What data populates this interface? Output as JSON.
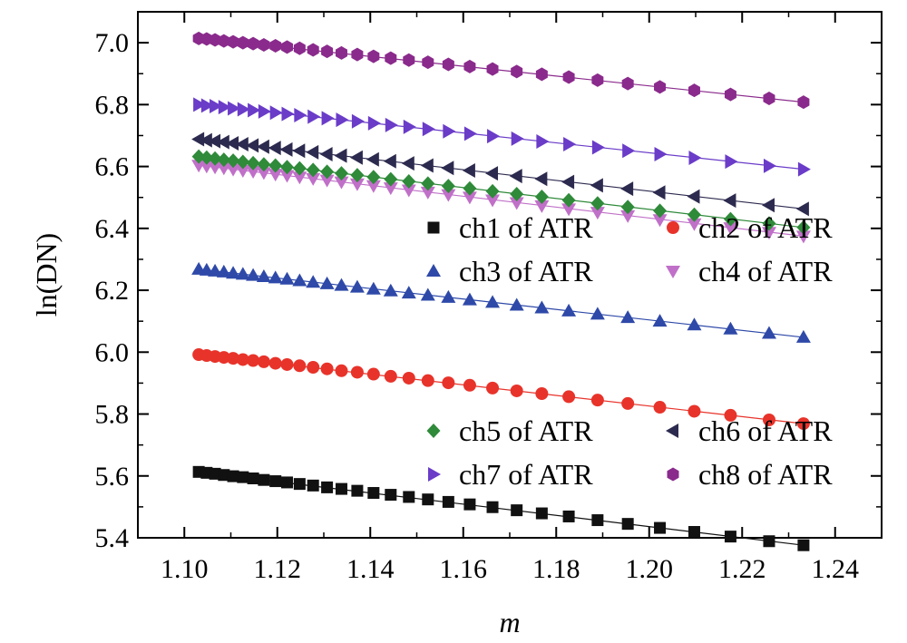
{
  "chart_data": {
    "type": "scatter",
    "title": "",
    "xlabel": "m",
    "ylabel": "ln(DN)",
    "xlim": [
      1.09,
      1.25
    ],
    "ylim": [
      5.4,
      7.1
    ],
    "xticks": [
      1.1,
      1.12,
      1.14,
      1.16,
      1.18,
      1.2,
      1.22,
      1.24
    ],
    "xtick_labels": [
      "1.10",
      "1.12",
      "1.14",
      "1.16",
      "1.18",
      "1.20",
      "1.22",
      "1.24"
    ],
    "yticks": [
      5.4,
      5.6,
      5.8,
      6.0,
      6.2,
      6.4,
      6.6,
      6.8,
      7.0
    ],
    "ytick_labels": [
      "5.4",
      "5.6",
      "5.8",
      "6.0",
      "6.2",
      "6.4",
      "6.6",
      "6.8",
      "7.0"
    ],
    "x": [
      1.1031,
      1.1048,
      1.1066,
      1.1085,
      1.1105,
      1.1126,
      1.1148,
      1.1171,
      1.1196,
      1.1221,
      1.1248,
      1.1277,
      1.1307,
      1.1338,
      1.1372,
      1.1407,
      1.1444,
      1.1483,
      1.1524,
      1.1568,
      1.1614,
      1.1663,
      1.1715,
      1.1769,
      1.1827,
      1.1889,
      1.1954,
      1.2023,
      1.2097,
      1.2175,
      1.2258,
      1.2332
    ],
    "series": [
      {
        "name": "ch1 of ATR",
        "marker": "square",
        "color": "#111111",
        "values": [
          5.613,
          5.61,
          5.607,
          5.603,
          5.599,
          5.596,
          5.592,
          5.587,
          5.583,
          5.579,
          5.574,
          5.569,
          5.563,
          5.558,
          5.552,
          5.545,
          5.539,
          5.532,
          5.524,
          5.516,
          5.508,
          5.499,
          5.489,
          5.479,
          5.469,
          5.457,
          5.445,
          5.432,
          5.419,
          5.404,
          5.389,
          5.376
        ],
        "fit": [
          5.612,
          5.376
        ]
      },
      {
        "name": "ch2 of ATR",
        "marker": "circle",
        "color": "#e8332a",
        "values": [
          5.992,
          5.989,
          5.986,
          5.983,
          5.98,
          5.976,
          5.973,
          5.969,
          5.964,
          5.96,
          5.956,
          5.951,
          5.946,
          5.94,
          5.935,
          5.929,
          5.922,
          5.916,
          5.908,
          5.901,
          5.893,
          5.884,
          5.875,
          5.866,
          5.856,
          5.845,
          5.834,
          5.822,
          5.809,
          5.796,
          5.781,
          5.769
        ],
        "fit": [
          5.992,
          5.769
        ]
      },
      {
        "name": "ch3 of ATR",
        "marker": "triangle-up",
        "color": "#2e49a8",
        "values": [
          6.268,
          6.265,
          6.262,
          6.259,
          6.255,
          6.252,
          6.248,
          6.244,
          6.24,
          6.236,
          6.231,
          6.226,
          6.221,
          6.216,
          6.21,
          6.204,
          6.198,
          6.191,
          6.184,
          6.177,
          6.169,
          6.161,
          6.152,
          6.143,
          6.133,
          6.123,
          6.112,
          6.1,
          6.088,
          6.075,
          6.061,
          6.048
        ],
        "fit": [
          6.268,
          6.048
        ]
      },
      {
        "name": "ch4 of ATR",
        "marker": "triangle-down",
        "color": "#c070c8",
        "values": [
          6.604,
          6.601,
          6.598,
          6.595,
          6.591,
          6.587,
          6.584,
          6.58,
          6.575,
          6.571,
          6.566,
          6.561,
          6.556,
          6.55,
          6.544,
          6.538,
          6.531,
          6.524,
          6.517,
          6.509,
          6.501,
          6.492,
          6.483,
          6.473,
          6.463,
          6.452,
          6.441,
          6.428,
          6.415,
          6.402,
          6.387,
          6.375
        ],
        "fit": [
          6.604,
          6.375
        ]
      },
      {
        "name": "ch5 of ATR",
        "marker": "diamond",
        "color": "#2f8a3a",
        "values": [
          6.632,
          6.629,
          6.626,
          6.622,
          6.619,
          6.615,
          6.611,
          6.607,
          6.603,
          6.598,
          6.594,
          6.589,
          6.583,
          6.578,
          6.572,
          6.566,
          6.559,
          6.552,
          6.545,
          6.537,
          6.529,
          6.52,
          6.511,
          6.502,
          6.491,
          6.481,
          6.469,
          6.457,
          6.444,
          6.43,
          6.416,
          6.403
        ],
        "fit": [
          6.632,
          6.403
        ]
      },
      {
        "name": "ch6 of ATR",
        "marker": "triangle-left",
        "color": "#2c2a4e",
        "values": [
          6.688,
          6.685,
          6.682,
          6.679,
          6.675,
          6.672,
          6.668,
          6.664,
          6.66,
          6.655,
          6.651,
          6.646,
          6.64,
          6.635,
          6.629,
          6.623,
          6.617,
          6.61,
          6.603,
          6.595,
          6.587,
          6.578,
          6.569,
          6.56,
          6.55,
          6.539,
          6.528,
          6.516,
          6.503,
          6.49,
          6.475,
          6.463
        ],
        "fit": [
          6.688,
          6.463
        ]
      },
      {
        "name": "ch7 of ATR",
        "marker": "triangle-right",
        "color": "#6a3cc8",
        "values": [
          6.8,
          6.797,
          6.795,
          6.792,
          6.788,
          6.785,
          6.782,
          6.778,
          6.774,
          6.77,
          6.766,
          6.761,
          6.756,
          6.751,
          6.746,
          6.74,
          6.734,
          6.728,
          6.721,
          6.714,
          6.706,
          6.698,
          6.69,
          6.681,
          6.672,
          6.662,
          6.651,
          6.64,
          6.628,
          6.616,
          6.602,
          6.591
        ],
        "fit": [
          6.8,
          6.591
        ]
      },
      {
        "name": "ch8 of ATR",
        "marker": "hexagon",
        "color": "#8a2a8c",
        "values": [
          7.014,
          7.012,
          7.009,
          7.006,
          7.003,
          7.0,
          6.997,
          6.993,
          6.99,
          6.986,
          6.982,
          6.977,
          6.972,
          6.967,
          6.962,
          6.956,
          6.95,
          6.944,
          6.937,
          6.93,
          6.923,
          6.915,
          6.907,
          6.898,
          6.889,
          6.879,
          6.868,
          6.857,
          6.846,
          6.833,
          6.82,
          6.808
        ],
        "fit": [
          7.014,
          6.808
        ]
      }
    ],
    "legends": [
      {
        "placement": "center-right",
        "entries": [
          "ch1 of ATR",
          "ch2 of ATR",
          "ch3 of ATR",
          "ch4 of ATR"
        ]
      },
      {
        "placement": "bottom-right",
        "entries": [
          "ch5 of ATR",
          "ch6 of ATR",
          "ch7 of ATR",
          "ch8 of ATR"
        ]
      }
    ],
    "grid": false
  }
}
